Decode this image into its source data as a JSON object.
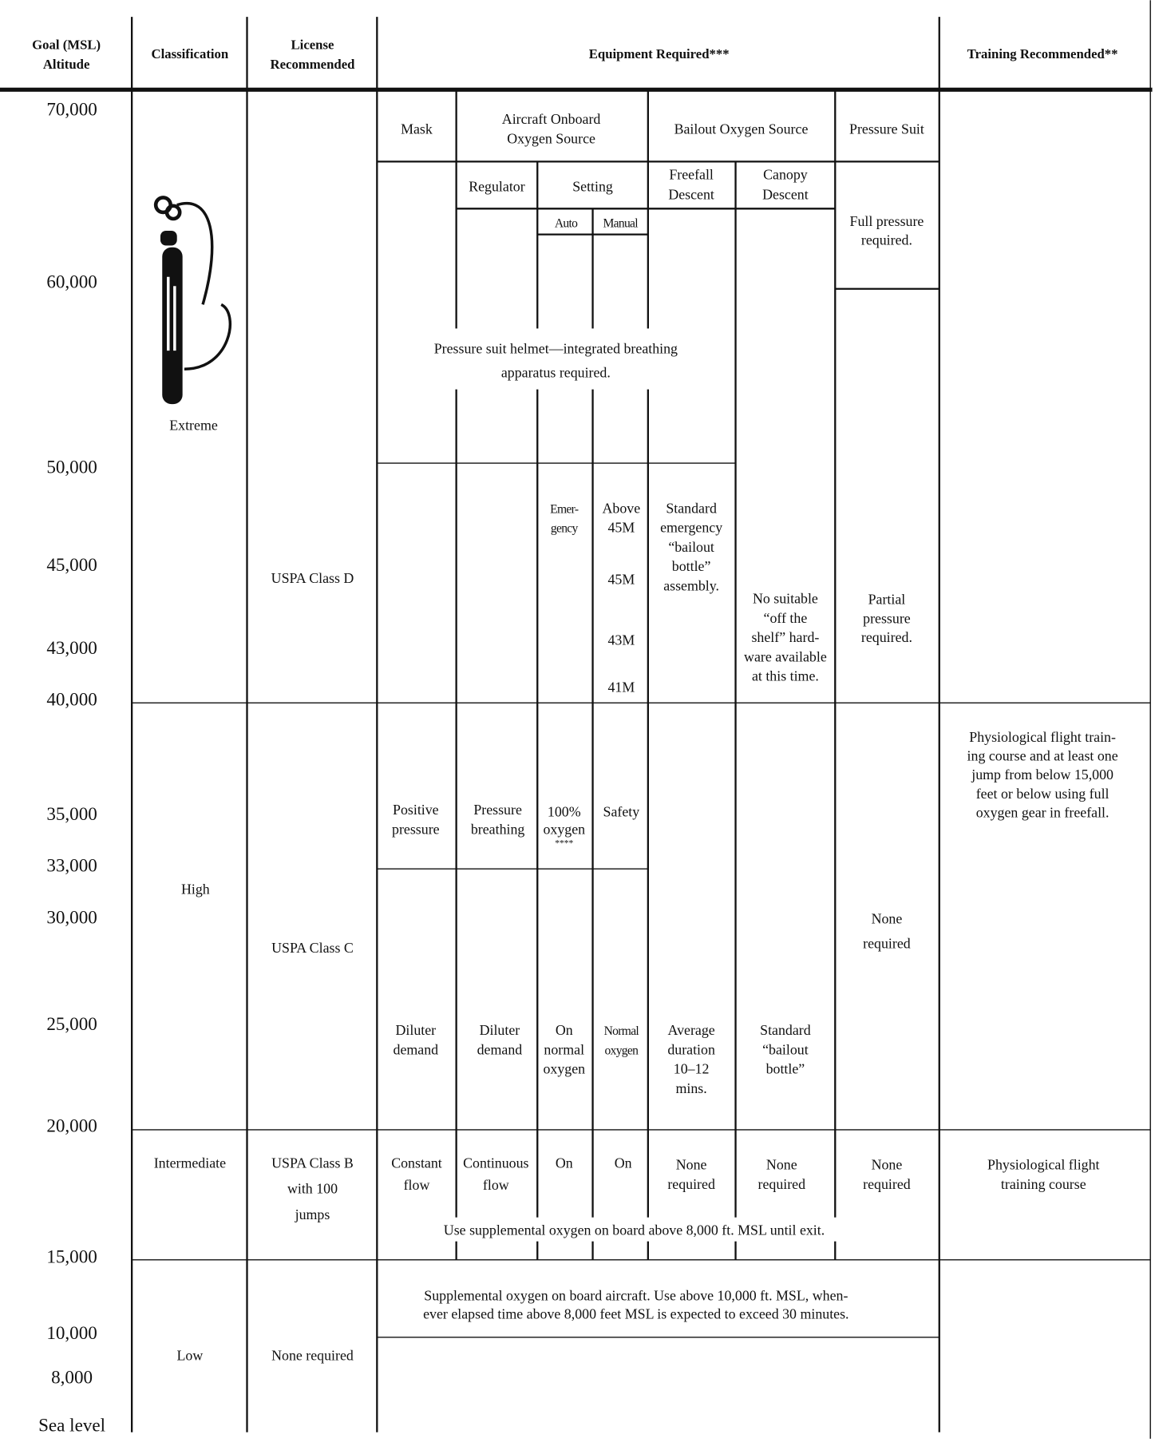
{
  "header": {
    "altitude": [
      "Goal (MSL)",
      "Altitude"
    ],
    "classification": "Classification",
    "license": [
      "License",
      "Recommended"
    ],
    "equipment": "Equipment Required***",
    "training": "Training Recommended**"
  },
  "altitudes": [
    "70,000",
    "60,000",
    "50,000",
    "45,000",
    "43,000",
    "40,000",
    "35,000",
    "33,000",
    "30,000",
    "25,000",
    "20,000",
    "15,000",
    "10,000",
    "8,000",
    "Sea level"
  ],
  "classification": {
    "extreme": "Extreme",
    "high": "High",
    "intermediate": "Intermediate",
    "low": "Low"
  },
  "license": {
    "extreme": "USPA Class D",
    "high": "USPA Class C",
    "intermediate": [
      "USPA Class B",
      "with 100",
      "jumps"
    ],
    "low": "None required"
  },
  "equipment": {
    "headers": {
      "mask": "Mask",
      "aircraft": [
        "Aircraft Onboard",
        "Oxygen Source"
      ],
      "bailout": "Bailout Oxygen Source",
      "suit": "Pressure Suit",
      "regulator": "Regulator",
      "setting": "Setting",
      "freefall": [
        "Freefall",
        "Descent"
      ],
      "canopy": [
        "Canopy",
        "Descent"
      ],
      "auto": "Auto",
      "manual": "Manual"
    },
    "extreme": {
      "helmet": [
        "Pressure suit helmet—integrated breathing",
        "apparatus required."
      ],
      "full_pressure": [
        "Full pressure",
        "required."
      ],
      "auto": [
        "Emer-",
        "gency"
      ],
      "manual": [
        "Above",
        "45M"
      ],
      "manual_45": "45M",
      "manual_43": "43M",
      "manual_41": "41M",
      "freefall": [
        "Standard",
        "emergency",
        "“bailout",
        "bottle”",
        "assembly."
      ],
      "canopy": [
        "No suitable",
        "“off the",
        "shelf” hard-",
        "ware available",
        "at this time."
      ],
      "partial_pressure": [
        "Partial",
        "pressure",
        "required."
      ]
    },
    "high": {
      "mask_upper": [
        "Positive",
        "pressure"
      ],
      "regulator_upper": [
        "Pressure",
        "breathing"
      ],
      "auto_upper": [
        "100%",
        "oxygen",
        "****"
      ],
      "manual_upper": "Safety",
      "suit": [
        "None",
        "required"
      ],
      "mask": [
        "Diluter",
        "demand"
      ],
      "regulator": [
        "Diluter",
        "demand"
      ],
      "auto": [
        "On",
        "normal",
        "oxygen"
      ],
      "manual": [
        "Normal",
        "oxygen"
      ],
      "freefall": [
        "Average",
        "duration",
        "10–12",
        "mins."
      ],
      "canopy": [
        "Standard",
        "“bailout",
        "bottle”"
      ]
    },
    "intermediate": {
      "mask": [
        "Constant",
        "flow"
      ],
      "regulator": [
        "Continuous",
        "flow"
      ],
      "auto": "On",
      "manual": "On",
      "freefall": [
        "None",
        "required"
      ],
      "canopy": [
        "None",
        "required"
      ],
      "suit": [
        "None",
        "required"
      ],
      "note": "Use supplemental oxygen on board above 8,000 ft. MSL until exit."
    },
    "low": {
      "note": [
        "Supplemental oxygen on board aircraft. Use above 10,000 ft. MSL, when-",
        "ever elapsed time above 8,000 feet MSL is expected to exceed 30 minutes."
      ]
    }
  },
  "training": {
    "high": [
      "Physiological flight train-",
      "ing course and at least one",
      "jump from below 15,000",
      "feet or below using full",
      "oxygen gear in freefall."
    ],
    "intermediate": [
      "Physiological flight",
      "training course"
    ]
  }
}
